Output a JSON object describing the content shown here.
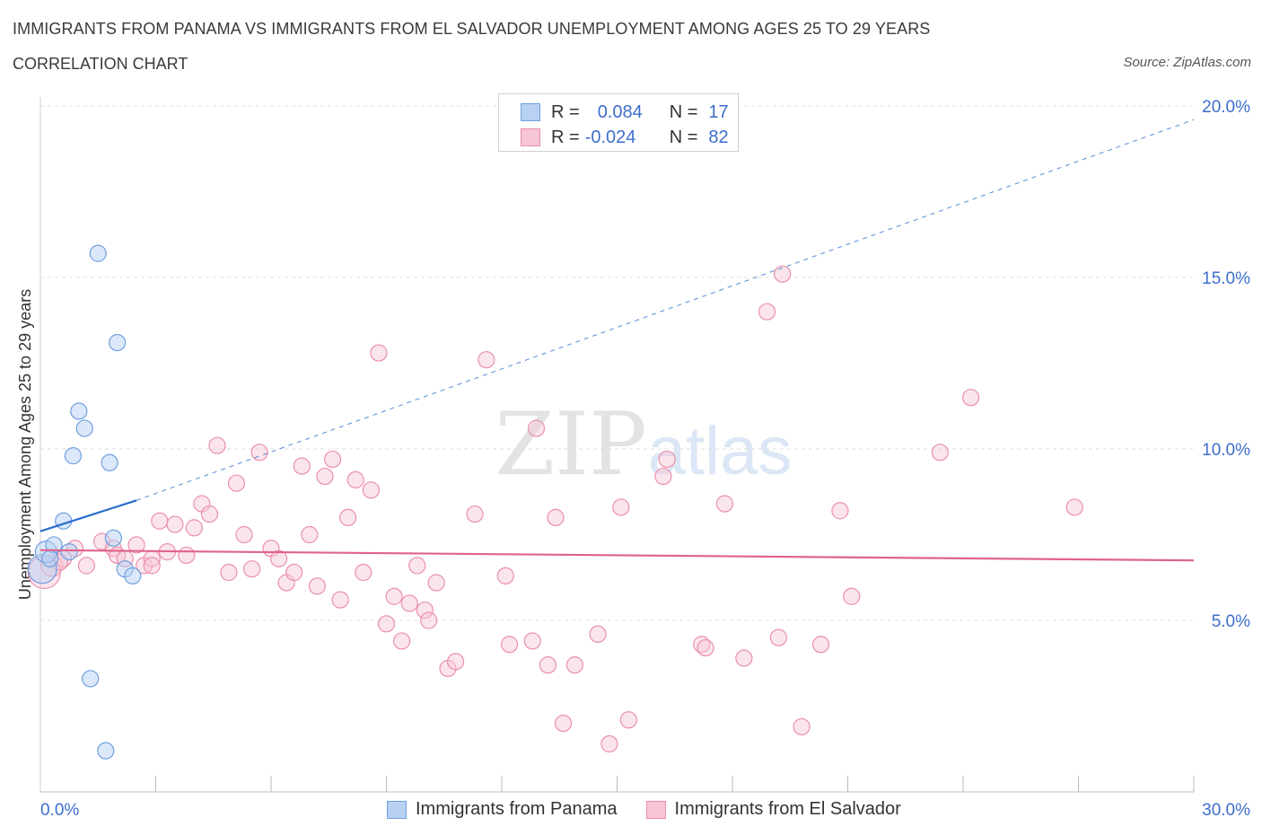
{
  "header": {
    "title": "IMMIGRANTS FROM PANAMA VS IMMIGRANTS FROM EL SALVADOR UNEMPLOYMENT AMONG AGES 25 TO 29 YEARS",
    "subtitle": "CORRELATION CHART",
    "source": "Source: ZipAtlas.com"
  },
  "legend": {
    "r_label": "R =",
    "n_label": "N =",
    "series1": {
      "r": "0.084",
      "n": "17"
    },
    "series2": {
      "r": "-0.024",
      "n": "82"
    }
  },
  "colors": {
    "blue_fill": "#b8d1f3",
    "blue_stroke": "#6e9fdf",
    "blue_line": "#2a6dcc",
    "pink_fill": "#f7c6d4",
    "pink_stroke": "#ea8fab",
    "pink_line": "#e0648c",
    "tick_text": "#3c6ecc",
    "grid": "#dddddd"
  },
  "chart_data": {
    "type": "scatter",
    "title": "IMMIGRANTS FROM PANAMA VS IMMIGRANTS FROM EL SALVADOR UNEMPLOYMENT AMONG AGES 25 TO 29 YEARS",
    "ylabel": "Unemployment Among Ages 25 to 29 years",
    "xlabel": "",
    "xlim": [
      0,
      30
    ],
    "ylim": [
      0,
      20
    ],
    "x_tick_labels": [
      "0.0%",
      "30.0%"
    ],
    "y_ticks": [
      5,
      10,
      15,
      20
    ],
    "y_tick_labels": [
      "5.0%",
      "10.0%",
      "15.0%",
      "20.0%"
    ],
    "watermark": {
      "bold": "ZIP",
      "light": "atlas"
    },
    "series": [
      {
        "name": "Immigrants from Panama",
        "color": "blue",
        "trend": {
          "x0": 0.0,
          "y0": 7.6,
          "x1": 2.5,
          "y1": 8.5,
          "dashed_to": [
            30,
            19.6
          ]
        },
        "points": [
          [
            0.05,
            6.5,
            16
          ],
          [
            0.15,
            7.0,
            12
          ],
          [
            0.35,
            7.2,
            9
          ],
          [
            0.6,
            7.9,
            9
          ],
          [
            0.75,
            7.0,
            9
          ],
          [
            0.85,
            9.8,
            9
          ],
          [
            1.0,
            11.1,
            9
          ],
          [
            1.15,
            10.6,
            9
          ],
          [
            1.5,
            15.7,
            9
          ],
          [
            1.8,
            9.6,
            9
          ],
          [
            1.9,
            7.4,
            9
          ],
          [
            2.0,
            13.1,
            9
          ],
          [
            2.2,
            6.5,
            9
          ],
          [
            2.4,
            6.3,
            9
          ],
          [
            1.3,
            3.3,
            9
          ],
          [
            1.7,
            1.2,
            9
          ],
          [
            0.25,
            6.8,
            9
          ]
        ]
      },
      {
        "name": "Immigrants from El Salvador",
        "color": "pink",
        "trend": {
          "x0": 0.0,
          "y0": 7.05,
          "x1": 30.0,
          "y1": 6.75
        },
        "points": [
          [
            0.1,
            6.4,
            18
          ],
          [
            0.3,
            6.6,
            12
          ],
          [
            0.6,
            6.8,
            9
          ],
          [
            0.9,
            7.1,
            9
          ],
          [
            1.2,
            6.6,
            9
          ],
          [
            1.6,
            7.3,
            9
          ],
          [
            1.9,
            7.1,
            9
          ],
          [
            2.0,
            6.9,
            9
          ],
          [
            2.2,
            6.8,
            9
          ],
          [
            2.5,
            7.2,
            9
          ],
          [
            2.7,
            6.6,
            9
          ],
          [
            2.9,
            6.8,
            9
          ],
          [
            3.1,
            7.9,
            9
          ],
          [
            3.3,
            7.0,
            9
          ],
          [
            3.5,
            7.8,
            9
          ],
          [
            3.8,
            6.9,
            9
          ],
          [
            4.0,
            7.7,
            9
          ],
          [
            4.2,
            8.4,
            9
          ],
          [
            4.4,
            8.1,
            9
          ],
          [
            4.6,
            10.1,
            9
          ],
          [
            4.9,
            6.4,
            9
          ],
          [
            5.1,
            9.0,
            9
          ],
          [
            5.3,
            7.5,
            9
          ],
          [
            5.5,
            6.5,
            9
          ],
          [
            5.7,
            9.9,
            9
          ],
          [
            6.0,
            7.1,
            9
          ],
          [
            6.2,
            6.8,
            9
          ],
          [
            6.4,
            6.1,
            9
          ],
          [
            6.6,
            6.4,
            9
          ],
          [
            6.8,
            9.5,
            9
          ],
          [
            7.0,
            7.5,
            9
          ],
          [
            7.2,
            6.0,
            9
          ],
          [
            7.4,
            9.2,
            9
          ],
          [
            7.6,
            9.7,
            9
          ],
          [
            7.8,
            5.6,
            9
          ],
          [
            8.0,
            8.0,
            9
          ],
          [
            8.2,
            9.1,
            9
          ],
          [
            8.4,
            6.4,
            9
          ],
          [
            8.6,
            8.8,
            9
          ],
          [
            8.8,
            12.8,
            9
          ],
          [
            9.0,
            4.9,
            9
          ],
          [
            9.2,
            5.7,
            9
          ],
          [
            9.4,
            4.4,
            9
          ],
          [
            9.6,
            5.5,
            9
          ],
          [
            9.8,
            6.6,
            9
          ],
          [
            10.0,
            5.3,
            9
          ],
          [
            10.1,
            5.0,
            9
          ],
          [
            10.3,
            6.1,
            9
          ],
          [
            10.6,
            3.6,
            9
          ],
          [
            10.8,
            3.8,
            9
          ],
          [
            11.3,
            8.1,
            9
          ],
          [
            11.6,
            12.6,
            9
          ],
          [
            12.1,
            6.3,
            9
          ],
          [
            12.2,
            4.3,
            9
          ],
          [
            12.8,
            4.4,
            9
          ],
          [
            12.9,
            10.6,
            9
          ],
          [
            13.2,
            3.7,
            9
          ],
          [
            13.4,
            8.0,
            9
          ],
          [
            13.6,
            2.0,
            9
          ],
          [
            13.9,
            3.7,
            9
          ],
          [
            14.5,
            4.6,
            9
          ],
          [
            14.8,
            1.4,
            9
          ],
          [
            15.1,
            8.3,
            9
          ],
          [
            15.3,
            2.1,
            9
          ],
          [
            16.2,
            9.2,
            9
          ],
          [
            16.3,
            9.7,
            9
          ],
          [
            17.2,
            4.3,
            9
          ],
          [
            17.3,
            4.2,
            9
          ],
          [
            17.8,
            8.4,
            9
          ],
          [
            18.3,
            3.9,
            9
          ],
          [
            18.9,
            14.0,
            9
          ],
          [
            19.2,
            4.5,
            9
          ],
          [
            19.3,
            15.1,
            9
          ],
          [
            19.8,
            1.9,
            9
          ],
          [
            20.3,
            4.3,
            9
          ],
          [
            20.8,
            8.2,
            9
          ],
          [
            21.1,
            5.7,
            9
          ],
          [
            23.4,
            9.9,
            9
          ],
          [
            24.2,
            11.5,
            9
          ],
          [
            26.9,
            8.3,
            9
          ],
          [
            0.5,
            6.7,
            9
          ],
          [
            2.9,
            6.6,
            9
          ]
        ]
      }
    ]
  }
}
